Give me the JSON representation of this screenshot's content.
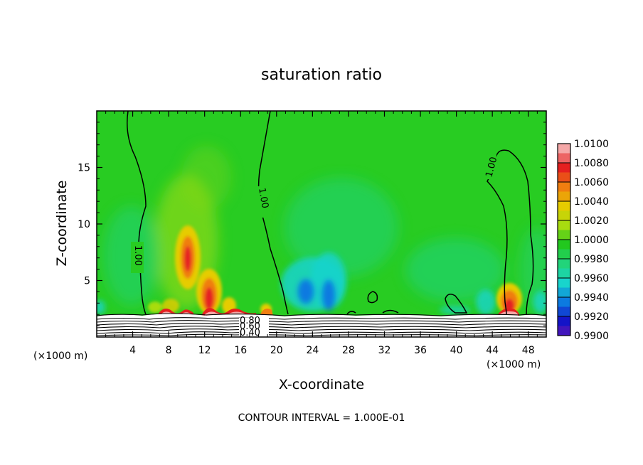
{
  "chart_data": {
    "type": "heatmap",
    "title": "saturation ratio",
    "xlabel": "X-coordinate",
    "ylabel": "Z-coordinate",
    "x_unit_left": "(×1000 m)",
    "x_unit_right": "(×1000 m)",
    "footer": "CONTOUR INTERVAL = 1.000E-01",
    "xlim": [
      0,
      50
    ],
    "ylim": [
      0,
      20
    ],
    "x_ticks": [
      "4",
      "8",
      "12",
      "16",
      "20",
      "24",
      "28",
      "32",
      "36",
      "40",
      "44",
      "48"
    ],
    "y_ticks": [
      "5",
      "10",
      "15"
    ],
    "colorbar": {
      "labels": [
        "1.0100",
        "1.0080",
        "1.0060",
        "1.0040",
        "1.0020",
        "1.0000",
        "0.9980",
        "0.9960",
        "0.9940",
        "0.9920",
        "0.9900"
      ],
      "colors": [
        "#f5a8a8",
        "#e52020",
        "#f07e10",
        "#e6cc00",
        "#a8dc10",
        "#22c81e",
        "#22d47a",
        "#18d4cc",
        "#0c7ae0",
        "#1414c8",
        "#6e18b0"
      ]
    },
    "contour_labels": [
      "1.00",
      "1.00",
      "1.00",
      "0.80",
      "0.60",
      "0.40"
    ],
    "background_value": 1.0,
    "features": [
      {
        "x": 10.3,
        "z": 7.0,
        "value": 1.006
      },
      {
        "x": 12.8,
        "z": 3.5,
        "value": 1.006
      },
      {
        "x": 45.8,
        "z": 3.0,
        "value": 1.004
      },
      {
        "x": 18.0,
        "z": 2.3,
        "value": 1.004
      },
      {
        "x": 23.5,
        "z": 4.5,
        "value": 0.995
      },
      {
        "x": 26.5,
        "z": 5.0,
        "value": 0.996
      },
      {
        "x": 42.5,
        "z": 3.5,
        "value": 0.998
      }
    ]
  }
}
